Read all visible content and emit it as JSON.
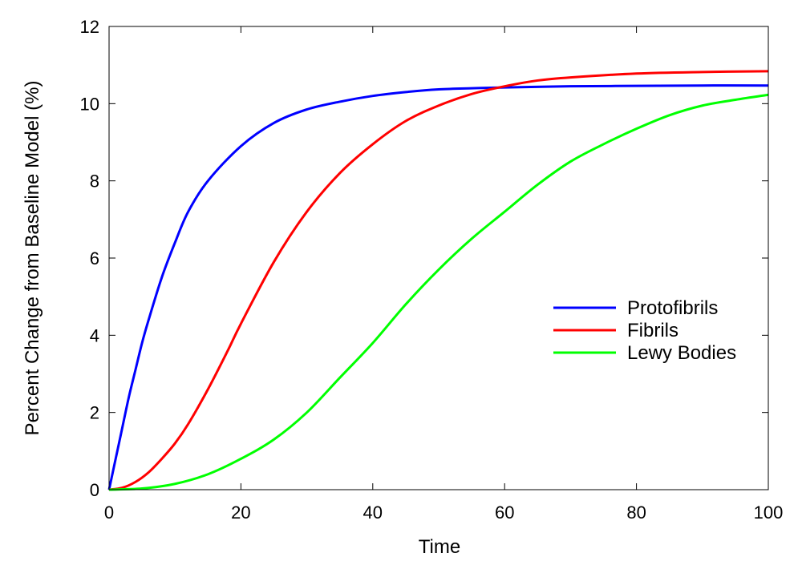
{
  "chart_data": {
    "type": "line",
    "title": "",
    "xlabel": "Time",
    "ylabel": "Percent Change from Baseline Model (%)",
    "xlim": [
      0,
      100
    ],
    "ylim": [
      0,
      12
    ],
    "xticks": [
      "0",
      "20",
      "40",
      "60",
      "80",
      "100"
    ],
    "yticks": [
      "0",
      "2",
      "4",
      "6",
      "8",
      "10",
      "12"
    ],
    "grid": false,
    "legend_position": "right",
    "series": [
      {
        "name": "Protofibrils",
        "color": "#0000ff",
        "x": [
          0,
          1,
          2,
          3,
          4,
          5,
          6,
          8,
          10,
          12,
          15,
          20,
          25,
          30,
          35,
          40,
          45,
          50,
          55,
          60,
          70,
          80,
          90,
          100
        ],
        "y": [
          0,
          0.8,
          1.6,
          2.4,
          3.1,
          3.8,
          4.4,
          5.5,
          6.4,
          7.2,
          8.0,
          8.9,
          9.5,
          9.85,
          10.05,
          10.2,
          10.3,
          10.37,
          10.4,
          10.42,
          10.45,
          10.46,
          10.47,
          10.47
        ]
      },
      {
        "name": "Fibrils",
        "color": "#ff0000",
        "x": [
          0,
          2,
          4,
          6,
          8,
          10,
          12,
          15,
          18,
          20,
          25,
          30,
          35,
          40,
          45,
          50,
          55,
          60,
          65,
          70,
          80,
          90,
          100
        ],
        "y": [
          0,
          0.05,
          0.2,
          0.45,
          0.8,
          1.2,
          1.7,
          2.6,
          3.6,
          4.3,
          5.9,
          7.2,
          8.2,
          8.95,
          9.55,
          9.95,
          10.25,
          10.45,
          10.6,
          10.68,
          10.78,
          10.82,
          10.84
        ]
      },
      {
        "name": "Lewy Bodies",
        "color": "#00ff00",
        "x": [
          0,
          5,
          10,
          15,
          20,
          25,
          30,
          35,
          40,
          45,
          50,
          55,
          60,
          65,
          70,
          75,
          80,
          85,
          90,
          95,
          100
        ],
        "y": [
          0,
          0.03,
          0.15,
          0.4,
          0.8,
          1.3,
          2.0,
          2.9,
          3.8,
          4.8,
          5.7,
          6.5,
          7.2,
          7.9,
          8.5,
          8.95,
          9.35,
          9.7,
          9.95,
          10.1,
          10.23
        ]
      }
    ]
  }
}
